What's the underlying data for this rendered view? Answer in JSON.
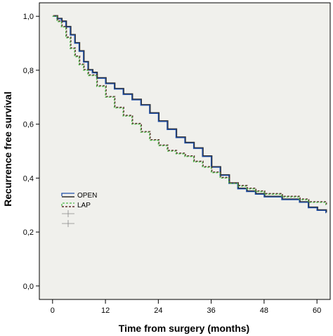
{
  "chart_data": {
    "type": "line",
    "step": true,
    "xlabel": "Time from surgery (months)",
    "ylabel": "Recurrence free survival",
    "xlim": [
      -3,
      63
    ],
    "ylim": [
      -0.05,
      1.05
    ],
    "x_ticks": [
      0,
      12,
      24,
      36,
      48,
      60
    ],
    "x_tick_labels": [
      "0",
      "12",
      "24",
      "36",
      "48",
      "60"
    ],
    "y_ticks": [
      0.0,
      0.2,
      0.4,
      0.6,
      0.8,
      1.0
    ],
    "y_tick_labels": [
      "0,0",
      "0,2",
      "0,4",
      "0,6",
      "0,8",
      "1,0"
    ],
    "grid": false,
    "legend_position": "left-center",
    "plot_background": "#f0f0ec",
    "series": [
      {
        "name": "OPEN",
        "color": "#1f4fa8",
        "shadow_color": "#2b2b2b",
        "dash": "solid",
        "points": [
          [
            0,
            1.0
          ],
          [
            1,
            0.99
          ],
          [
            2,
            0.98
          ],
          [
            3,
            0.96
          ],
          [
            4,
            0.93
          ],
          [
            5,
            0.9
          ],
          [
            6,
            0.87
          ],
          [
            7,
            0.83
          ],
          [
            8,
            0.8
          ],
          [
            9,
            0.79
          ],
          [
            10,
            0.77
          ],
          [
            12,
            0.75
          ],
          [
            14,
            0.73
          ],
          [
            16,
            0.71
          ],
          [
            18,
            0.69
          ],
          [
            20,
            0.67
          ],
          [
            22,
            0.64
          ],
          [
            24,
            0.61
          ],
          [
            26,
            0.58
          ],
          [
            28,
            0.55
          ],
          [
            30,
            0.53
          ],
          [
            32,
            0.51
          ],
          [
            34,
            0.48
          ],
          [
            36,
            0.44
          ],
          [
            38,
            0.41
          ],
          [
            40,
            0.38
          ],
          [
            42,
            0.36
          ],
          [
            44,
            0.35
          ],
          [
            46,
            0.34
          ],
          [
            48,
            0.33
          ],
          [
            50,
            0.33
          ],
          [
            52,
            0.32
          ],
          [
            54,
            0.32
          ],
          [
            56,
            0.31
          ],
          [
            58,
            0.29
          ],
          [
            60,
            0.28
          ],
          [
            62,
            0.27
          ]
        ]
      },
      {
        "name": "LAP",
        "color": "#4cb848",
        "shadow_color": "#5a2a2a",
        "dash": "dashed",
        "points": [
          [
            0,
            1.0
          ],
          [
            1,
            0.98
          ],
          [
            2,
            0.96
          ],
          [
            3,
            0.92
          ],
          [
            4,
            0.88
          ],
          [
            5,
            0.85
          ],
          [
            6,
            0.82
          ],
          [
            7,
            0.8
          ],
          [
            8,
            0.78
          ],
          [
            10,
            0.74
          ],
          [
            12,
            0.7
          ],
          [
            14,
            0.66
          ],
          [
            16,
            0.63
          ],
          [
            18,
            0.6
          ],
          [
            20,
            0.57
          ],
          [
            22,
            0.54
          ],
          [
            24,
            0.52
          ],
          [
            26,
            0.5
          ],
          [
            28,
            0.49
          ],
          [
            30,
            0.48
          ],
          [
            32,
            0.46
          ],
          [
            34,
            0.44
          ],
          [
            36,
            0.42
          ],
          [
            38,
            0.4
          ],
          [
            40,
            0.38
          ],
          [
            42,
            0.37
          ],
          [
            44,
            0.36
          ],
          [
            46,
            0.35
          ],
          [
            48,
            0.34
          ],
          [
            50,
            0.34
          ],
          [
            52,
            0.33
          ],
          [
            54,
            0.33
          ],
          [
            56,
            0.32
          ],
          [
            58,
            0.31
          ],
          [
            60,
            0.31
          ],
          [
            62,
            0.3
          ]
        ]
      }
    ],
    "legend_extra_markers": 2
  }
}
